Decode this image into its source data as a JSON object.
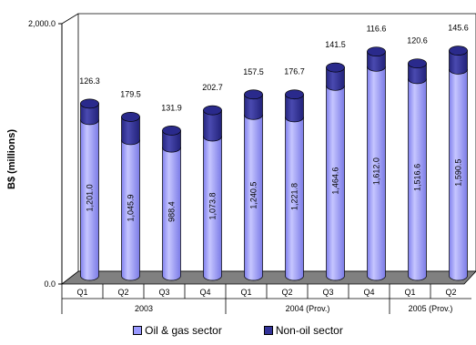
{
  "chart_data": {
    "type": "bar",
    "stacked": true,
    "three_d": true,
    "shape": "cylinder",
    "ylabel": "B$ (millions)",
    "xlabel": "",
    "ylim": [
      0,
      2000
    ],
    "y_ticks": [
      "0.0",
      "2,000.0"
    ],
    "grid": false,
    "legend_position": "bottom",
    "categories": [
      "Q1",
      "Q2",
      "Q3",
      "Q4",
      "Q1",
      "Q2",
      "Q3",
      "Q4",
      "Q1",
      "Q2"
    ],
    "groups": [
      {
        "label": "2003",
        "count": 4
      },
      {
        "label": "2004 (Prov.)",
        "count": 4
      },
      {
        "label": "2005 (Prov.)",
        "count": 2
      }
    ],
    "series": [
      {
        "name": "Oil & gas sector",
        "color": "#9999ff",
        "values": [
          1201.0,
          1045.9,
          988.4,
          1073.8,
          1240.5,
          1221.8,
          1464.6,
          1612.0,
          1516.6,
          1590.5
        ],
        "labels": [
          "1,201.0",
          "1,045.9",
          "988.4",
          "1,073.8",
          "1,240.5",
          "1,221.8",
          "1,464.6",
          "1,612.0",
          "1,516.6",
          "1,590.5"
        ]
      },
      {
        "name": "Non-oil sector",
        "color": "#333399",
        "values": [
          126.3,
          179.5,
          131.9,
          202.7,
          157.5,
          176.7,
          141.5,
          116.6,
          120.6,
          145.6
        ],
        "labels": [
          "126.3",
          "179.5",
          "131.9",
          "202.7",
          "157.5",
          "176.7",
          "141.5",
          "116.6",
          "120.6",
          "145.6"
        ]
      }
    ]
  }
}
